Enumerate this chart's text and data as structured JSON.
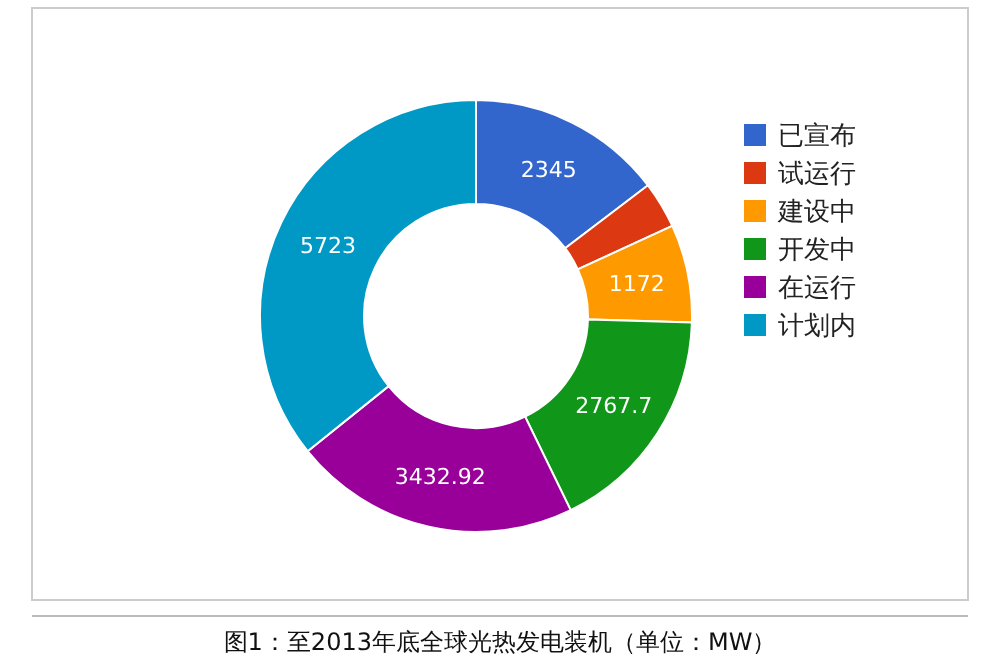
{
  "chart_data": {
    "type": "donut",
    "title": "图1：至2013年底全球光热发电装机（单位：MW）",
    "categories": [
      "已宣布",
      "试运行",
      "建设中",
      "开发中",
      "在运行",
      "计划内"
    ],
    "values": [
      2345,
      560,
      1172,
      2767.7,
      3432.92,
      5723
    ],
    "value_labels": [
      "2345",
      null,
      "1172",
      "2767.7",
      "3432.92",
      "5723"
    ],
    "colors": [
      "#3366cc",
      "#dc3912",
      "#ff9900",
      "#109618",
      "#990099",
      "#0099c6"
    ],
    "legend": "right"
  }
}
